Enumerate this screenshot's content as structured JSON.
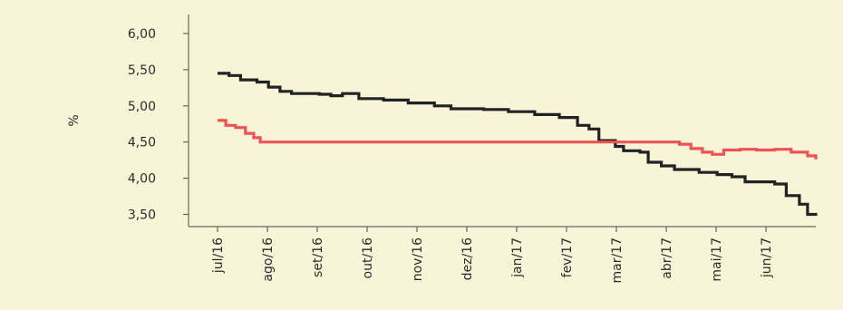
{
  "chart_data": {
    "type": "line",
    "title": "",
    "xlabel": "",
    "ylabel": "%",
    "ylim": [
      3.4,
      6.1
    ],
    "y_ticks": [
      "6,00",
      "5,50",
      "5,00",
      "4,50",
      "4,00",
      "3,50"
    ],
    "y_tick_values": [
      6.0,
      5.5,
      5.0,
      4.5,
      4.0,
      3.5
    ],
    "x_ticks": [
      "jul/16",
      "ago/16",
      "set/16",
      "out/16",
      "nov/16",
      "dez/16",
      "jan/17",
      "fev/17",
      "mar/17",
      "abr/17",
      "mai/17",
      "jun/17"
    ],
    "x_domain": [
      "2016-07-01",
      "2017-06-30"
    ],
    "grid": false,
    "legend": "none",
    "series": [
      {
        "color": "#222222",
        "points": [
          [
            "2016-07-01",
            5.45
          ],
          [
            "2016-07-08",
            5.42
          ],
          [
            "2016-07-15",
            5.36
          ],
          [
            "2016-07-25",
            5.33
          ],
          [
            "2016-08-01",
            5.26
          ],
          [
            "2016-08-08",
            5.2
          ],
          [
            "2016-08-15",
            5.17
          ],
          [
            "2016-09-01",
            5.16
          ],
          [
            "2016-09-08",
            5.14
          ],
          [
            "2016-09-15",
            5.17
          ],
          [
            "2016-09-25",
            5.1
          ],
          [
            "2016-10-10",
            5.08
          ],
          [
            "2016-10-25",
            5.04
          ],
          [
            "2016-11-10",
            5.0
          ],
          [
            "2016-11-20",
            4.96
          ],
          [
            "2016-12-10",
            4.95
          ],
          [
            "2016-12-25",
            4.92
          ],
          [
            "2017-01-10",
            4.88
          ],
          [
            "2017-01-25",
            4.84
          ],
          [
            "2017-02-05",
            4.73
          ],
          [
            "2017-02-12",
            4.68
          ],
          [
            "2017-02-18",
            4.52
          ],
          [
            "2017-02-28",
            4.44
          ],
          [
            "2017-03-05",
            4.38
          ],
          [
            "2017-03-15",
            4.36
          ],
          [
            "2017-03-20",
            4.22
          ],
          [
            "2017-03-28",
            4.17
          ],
          [
            "2017-04-05",
            4.12
          ],
          [
            "2017-04-20",
            4.08
          ],
          [
            "2017-05-01",
            4.05
          ],
          [
            "2017-05-10",
            4.02
          ],
          [
            "2017-05-18",
            3.95
          ],
          [
            "2017-05-28",
            3.95
          ],
          [
            "2017-06-05",
            3.92
          ],
          [
            "2017-06-12",
            3.76
          ],
          [
            "2017-06-20",
            3.64
          ],
          [
            "2017-06-25",
            3.5
          ],
          [
            "2017-06-30",
            3.48
          ]
        ]
      },
      {
        "color": "#ee5353",
        "points": [
          [
            "2016-07-01",
            4.8
          ],
          [
            "2016-07-06",
            4.73
          ],
          [
            "2016-07-12",
            4.7
          ],
          [
            "2016-07-18",
            4.62
          ],
          [
            "2016-07-23",
            4.56
          ],
          [
            "2016-07-27",
            4.5
          ],
          [
            "2016-09-01",
            4.5
          ],
          [
            "2017-03-31",
            4.5
          ],
          [
            "2017-04-08",
            4.47
          ],
          [
            "2017-04-15",
            4.41
          ],
          [
            "2017-04-22",
            4.36
          ],
          [
            "2017-04-28",
            4.33
          ],
          [
            "2017-05-05",
            4.39
          ],
          [
            "2017-05-15",
            4.4
          ],
          [
            "2017-05-25",
            4.39
          ],
          [
            "2017-06-05",
            4.4
          ],
          [
            "2017-06-15",
            4.36
          ],
          [
            "2017-06-25",
            4.31
          ],
          [
            "2017-06-30",
            4.26
          ]
        ]
      }
    ]
  }
}
